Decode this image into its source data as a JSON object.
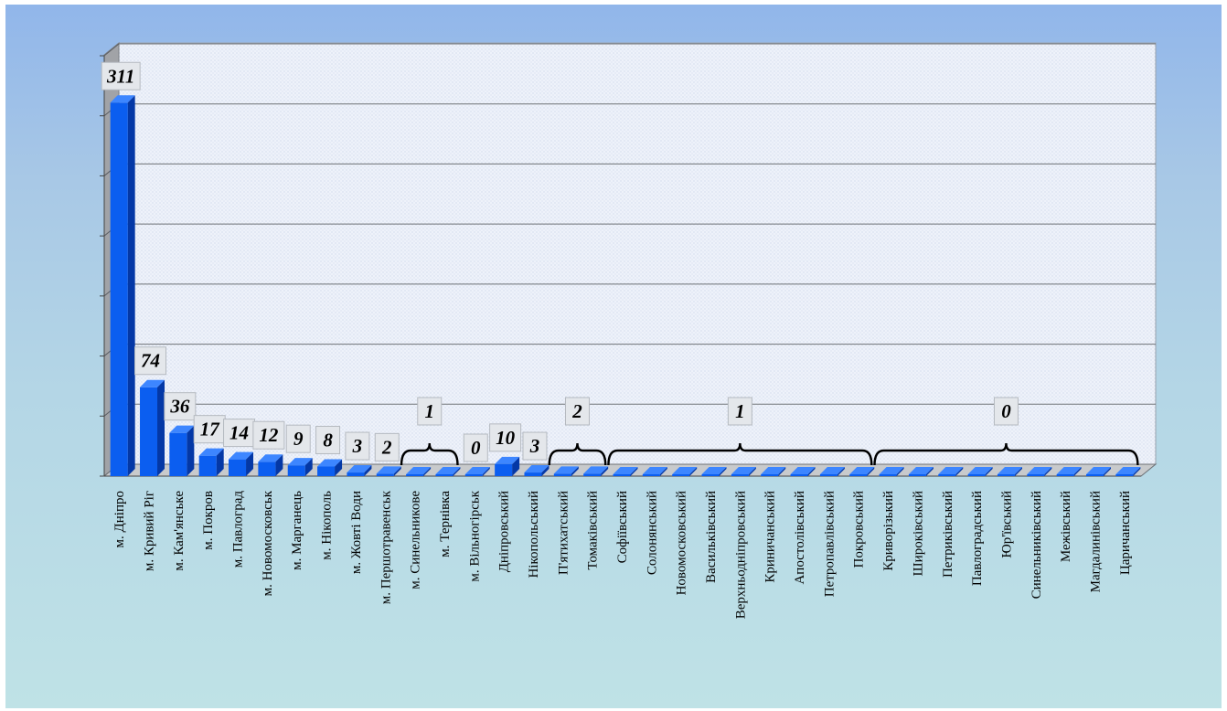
{
  "chart_data": {
    "type": "bar",
    "style": "3d-column",
    "categories": [
      "м. Дніпро",
      "м. Кривий Ріг",
      "м. Кам'янське",
      "м. Покров",
      "м. Павлоград",
      "м. Новомосковськ",
      "м. Марганець",
      "м. Нікополь",
      "м. Жовті Води",
      "м. Першотравенськ",
      "м. Синельникове",
      "м. Тернівка",
      "м. Вільногірськ",
      "Дніпровський",
      "Нікопольський",
      "П'ятихатський",
      "Томаківський",
      "Софіївський",
      "Солонянський",
      "Новомосковський",
      "Васильківський",
      "Верхньодніпровський",
      "Криничанський",
      "Апостолівський",
      "Петропавлівський",
      "Покровський",
      "Криворізький",
      "Широківський",
      "Петриківський",
      "Павлоградський",
      "Юр'ївський",
      "Синельниківський",
      "Межівський",
      "Магдалинівський",
      "Царичанський"
    ],
    "values": [
      311,
      74,
      36,
      17,
      14,
      12,
      9,
      8,
      3,
      2,
      1,
      1,
      0,
      10,
      3,
      2,
      2,
      1,
      1,
      1,
      1,
      1,
      1,
      1,
      1,
      1,
      0,
      0,
      0,
      0,
      0,
      0,
      0,
      0,
      0
    ],
    "data_labels": [
      {
        "index": 0,
        "text": "311"
      },
      {
        "index": 1,
        "text": "74"
      },
      {
        "index": 2,
        "text": "36"
      },
      {
        "index": 3,
        "text": "17"
      },
      {
        "index": 4,
        "text": "14"
      },
      {
        "index": 5,
        "text": "12"
      },
      {
        "index": 6,
        "text": "9"
      },
      {
        "index": 7,
        "text": "8"
      },
      {
        "index": 8,
        "text": "3"
      },
      {
        "index": 9,
        "text": "2"
      },
      {
        "index": 12,
        "text": "0"
      },
      {
        "index": 13,
        "text": "10"
      },
      {
        "index": 14,
        "text": "3"
      }
    ],
    "group_labels": [
      {
        "from": 10,
        "to": 11,
        "text": "1"
      },
      {
        "from": 15,
        "to": 16,
        "text": "2"
      },
      {
        "from": 17,
        "to": 25,
        "text": "1"
      },
      {
        "from": 26,
        "to": 34,
        "text": "0"
      }
    ],
    "ylim": [
      0,
      350
    ],
    "y_gridlines": 7,
    "title": "",
    "xlabel": "",
    "ylabel": "",
    "grid": true,
    "legend": false,
    "colors": {
      "bar_front": "#0b5ef0",
      "bar_side": "#0438a6",
      "bar_top": "#3d86ff",
      "wall_left": "#a1a3a7",
      "plot_back": "#eef2fa",
      "grid": "#6e7276",
      "floor": "#c8cacc"
    }
  }
}
